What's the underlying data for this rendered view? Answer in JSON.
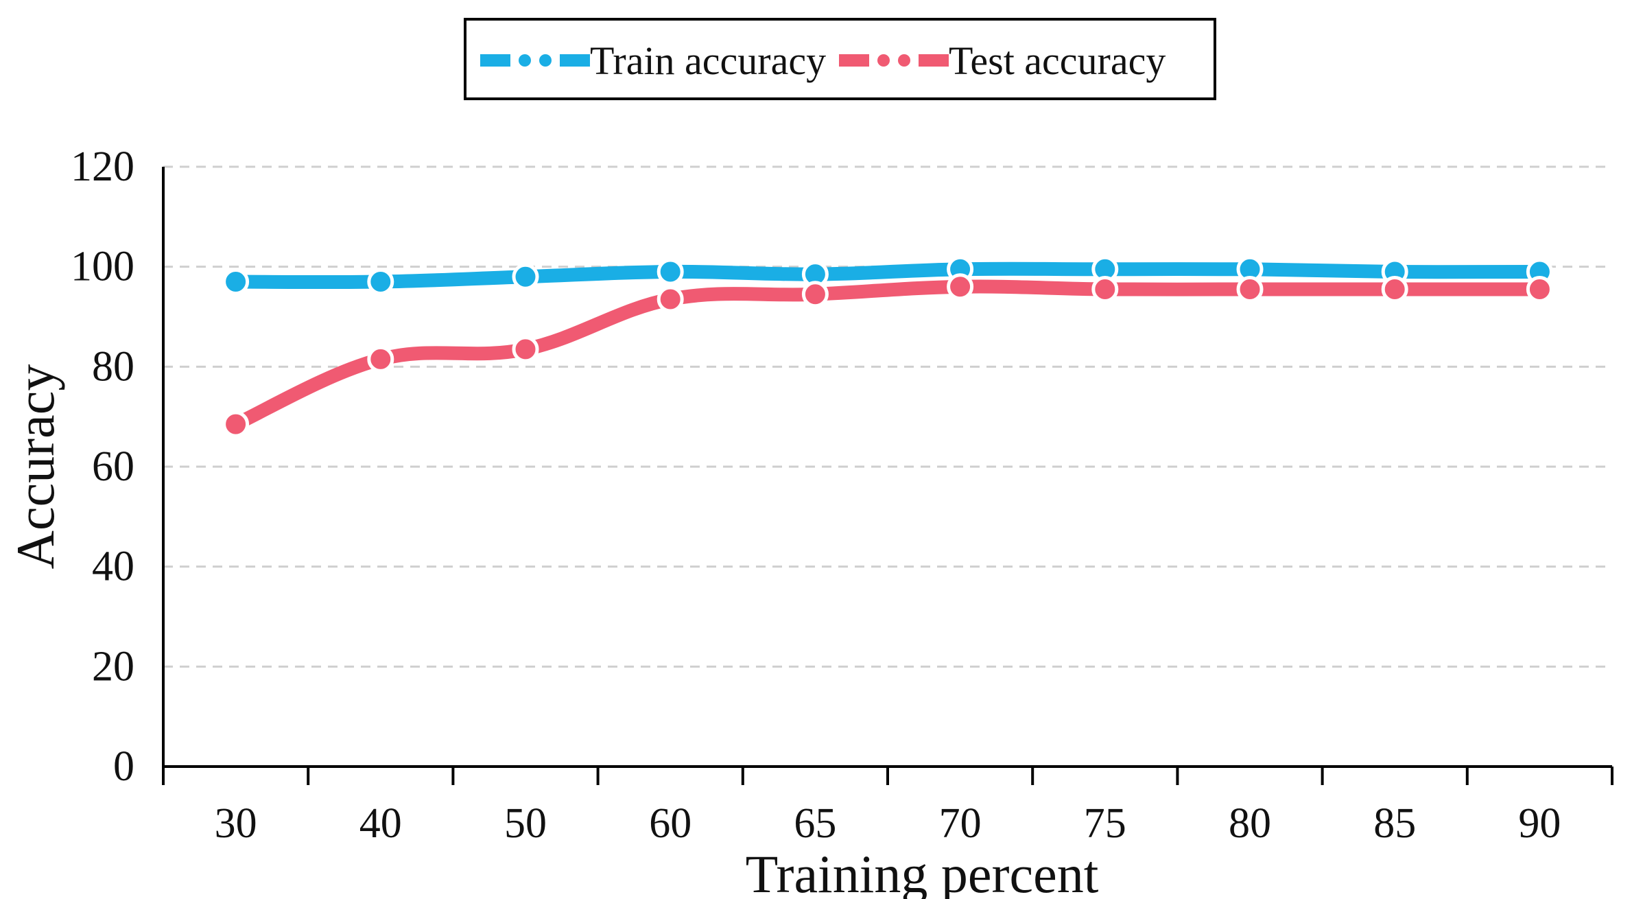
{
  "chart_data": {
    "type": "line",
    "title": "",
    "xlabel": "Training percent",
    "ylabel": "Accuracy",
    "categories": [
      "30",
      "40",
      "50",
      "60",
      "65",
      "70",
      "75",
      "80",
      "85",
      "90"
    ],
    "ylim": [
      0,
      120
    ],
    "yticks": [
      "0",
      "20",
      "40",
      "60",
      "80",
      "100",
      "120"
    ],
    "grid": true,
    "legend_position": "top-center",
    "series": [
      {
        "name": "Train accuracy",
        "color": "#1aaee5",
        "values": [
          97,
          97,
          98,
          99,
          98.5,
          99.5,
          99.5,
          99.5,
          99,
          99
        ]
      },
      {
        "name": "Test accuracy",
        "color": "#f05a72",
        "values": [
          68.5,
          81.5,
          83.5,
          93.5,
          94.5,
          96,
          95.5,
          95.5,
          95.5,
          95.5
        ]
      }
    ]
  }
}
